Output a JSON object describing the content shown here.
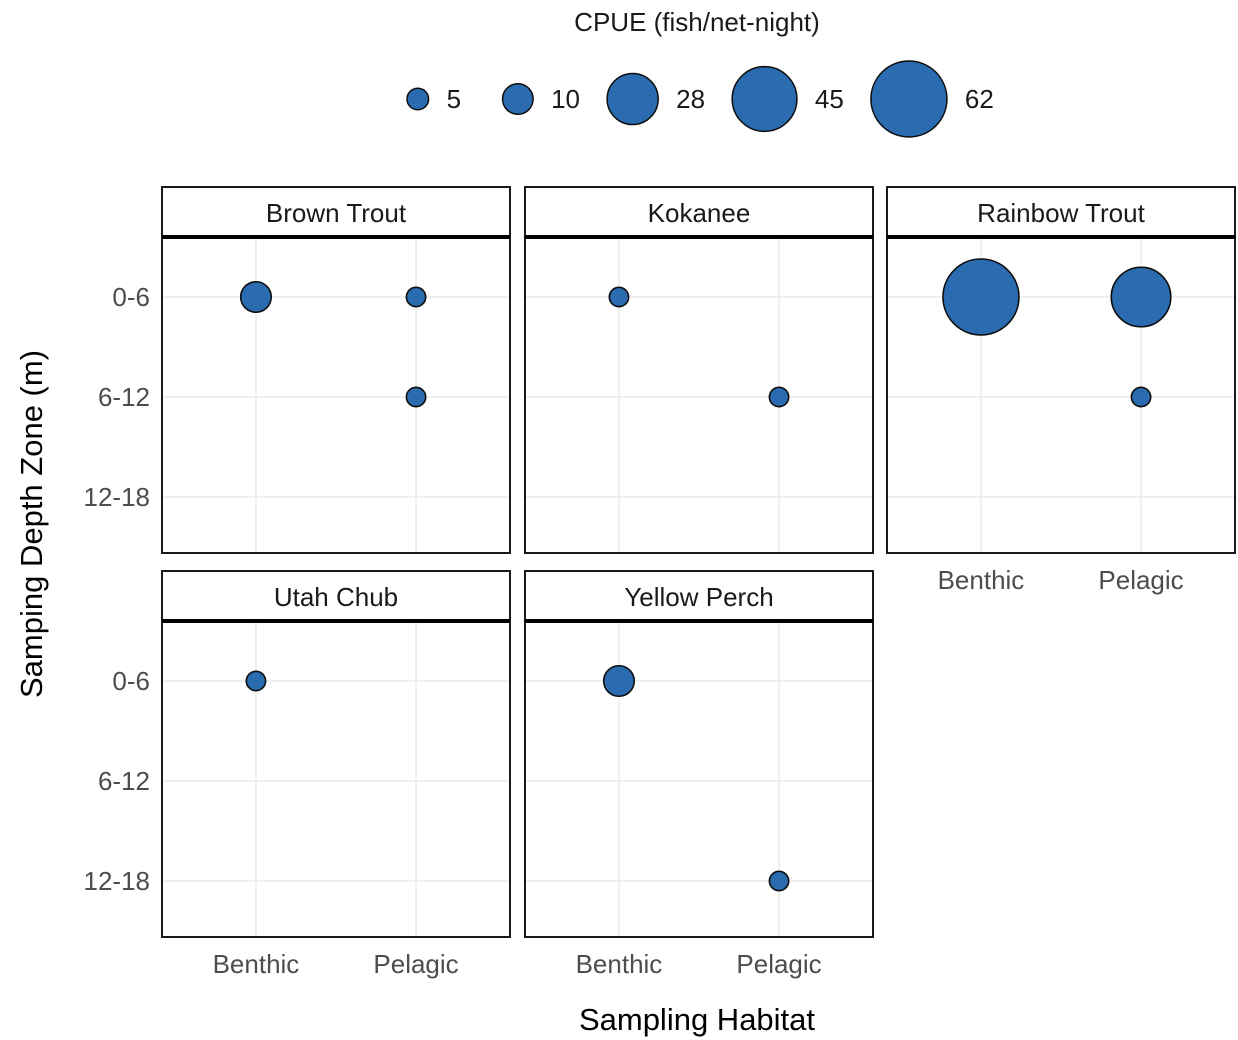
{
  "chart_data": {
    "type": "scatter",
    "subtype": "faceted-bubble",
    "xlabel": "Sampling Habitat",
    "ylabel": "Samping Depth Zone (m)",
    "x_categories": [
      "Benthic",
      "Pelagic"
    ],
    "y_categories": [
      "0-6",
      "6-12",
      "12-18"
    ],
    "size_legend": {
      "title": "CPUE (fish/net-night)",
      "placement": "top",
      "values": [
        5,
        10,
        28,
        45,
        62
      ],
      "labels": [
        "5",
        "10",
        "28",
        "45",
        "62"
      ]
    },
    "grid": true,
    "colors": {
      "point_fill": "#2b6cb0",
      "point_stroke": "#0d0d0d",
      "panel_border": "#1a1a1a",
      "grid": "#ebebeb"
    },
    "facets": [
      {
        "name": "Brown Trout",
        "points": [
          {
            "x": "Benthic",
            "y": "0-6",
            "cpue": 10
          },
          {
            "x": "Pelagic",
            "y": "0-6",
            "cpue": 4
          },
          {
            "x": "Pelagic",
            "y": "6-12",
            "cpue": 4
          }
        ]
      },
      {
        "name": "Kokanee",
        "points": [
          {
            "x": "Benthic",
            "y": "0-6",
            "cpue": 4
          },
          {
            "x": "Pelagic",
            "y": "6-12",
            "cpue": 4
          }
        ]
      },
      {
        "name": "Rainbow Trout",
        "points": [
          {
            "x": "Benthic",
            "y": "0-6",
            "cpue": 62
          },
          {
            "x": "Pelagic",
            "y": "0-6",
            "cpue": 38
          },
          {
            "x": "Pelagic",
            "y": "6-12",
            "cpue": 4
          }
        ]
      },
      {
        "name": "Utah Chub",
        "points": [
          {
            "x": "Benthic",
            "y": "0-6",
            "cpue": 4
          }
        ]
      },
      {
        "name": "Yellow Perch",
        "points": [
          {
            "x": "Benthic",
            "y": "0-6",
            "cpue": 10
          },
          {
            "x": "Pelagic",
            "y": "12-18",
            "cpue": 4
          }
        ]
      }
    ]
  }
}
